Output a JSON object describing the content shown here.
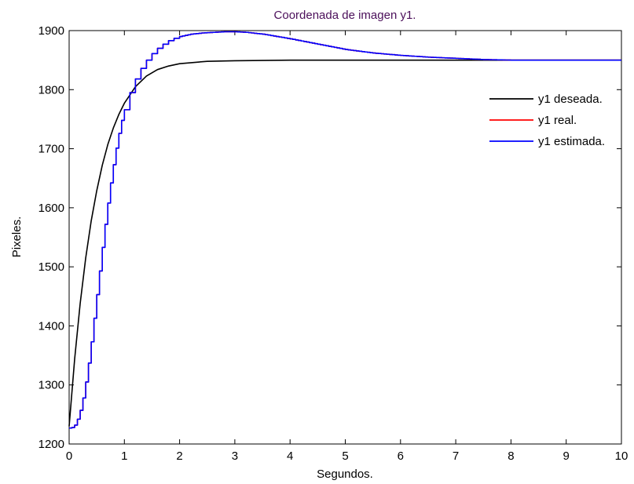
{
  "chart_data": {
    "type": "line",
    "title": "Coordenada de imagen y1.",
    "title_color": "#4b0f5a",
    "xlabel": "Segundos.",
    "ylabel": "Pixeles.",
    "xlim": [
      0,
      10
    ],
    "ylim": [
      1200,
      1900
    ],
    "x_ticks": [
      "0",
      "1",
      "2",
      "3",
      "4",
      "5",
      "6",
      "7",
      "8",
      "9",
      "10"
    ],
    "y_ticks": [
      "1200",
      "1300",
      "1400",
      "1500",
      "1600",
      "1700",
      "1800",
      "1900"
    ],
    "grid": false,
    "legend_position": "top-right",
    "series": [
      {
        "name": "y1 deseada.",
        "color": "#000000",
        "style": "smooth",
        "x": [
          0,
          0.1,
          0.2,
          0.3,
          0.4,
          0.5,
          0.6,
          0.7,
          0.8,
          0.9,
          1.0,
          1.2,
          1.4,
          1.6,
          1.8,
          2.0,
          2.5,
          3.0,
          4.0,
          5.0,
          6.0,
          7.0,
          8.0,
          9.0,
          10.0
        ],
        "y": [
          1230,
          1344,
          1438,
          1515,
          1578,
          1629,
          1672,
          1707,
          1735,
          1758,
          1777,
          1805,
          1823,
          1834,
          1840,
          1844,
          1848,
          1849,
          1850,
          1850,
          1850,
          1850,
          1850,
          1850,
          1850
        ]
      },
      {
        "name": "y1 real.",
        "color": "#ff0000",
        "style": "step",
        "x": [
          0,
          0.05,
          0.1,
          0.15,
          0.2,
          0.25,
          0.3,
          0.35,
          0.4,
          0.45,
          0.5,
          0.55,
          0.6,
          0.65,
          0.7,
          0.75,
          0.8,
          0.85,
          0.9,
          0.95,
          1.0,
          1.1,
          1.2,
          1.3,
          1.4,
          1.5,
          1.6,
          1.7,
          1.8,
          1.9,
          2.0,
          2.2,
          2.4,
          2.6,
          2.8,
          3.0,
          3.2,
          3.5,
          4.0,
          4.5,
          5.0,
          5.5,
          6.0,
          6.5,
          7.0,
          7.5,
          8.0,
          9.0,
          10.0
        ],
        "y": [
          1227,
          1228,
          1232,
          1242,
          1257,
          1278,
          1305,
          1337,
          1373,
          1413,
          1453,
          1493,
          1533,
          1572,
          1608,
          1642,
          1673,
          1701,
          1726,
          1748,
          1766,
          1795,
          1818,
          1836,
          1850,
          1861,
          1870,
          1877,
          1883,
          1887,
          1890,
          1894,
          1896,
          1897,
          1898,
          1898,
          1897,
          1894,
          1886,
          1877,
          1868,
          1862,
          1858,
          1855,
          1853,
          1851,
          1850,
          1850,
          1850
        ]
      },
      {
        "name": "y1 estimada.",
        "color": "#0000ff",
        "style": "step",
        "x": [
          0,
          0.05,
          0.1,
          0.15,
          0.2,
          0.25,
          0.3,
          0.35,
          0.4,
          0.45,
          0.5,
          0.55,
          0.6,
          0.65,
          0.7,
          0.75,
          0.8,
          0.85,
          0.9,
          0.95,
          1.0,
          1.1,
          1.2,
          1.3,
          1.4,
          1.5,
          1.6,
          1.7,
          1.8,
          1.9,
          2.0,
          2.2,
          2.4,
          2.6,
          2.8,
          3.0,
          3.2,
          3.5,
          4.0,
          4.5,
          5.0,
          5.5,
          6.0,
          6.5,
          7.0,
          7.5,
          8.0,
          9.0,
          10.0
        ],
        "y": [
          1227,
          1228,
          1232,
          1242,
          1257,
          1278,
          1305,
          1337,
          1373,
          1413,
          1453,
          1493,
          1533,
          1572,
          1608,
          1642,
          1673,
          1701,
          1726,
          1748,
          1766,
          1795,
          1818,
          1836,
          1850,
          1861,
          1870,
          1877,
          1883,
          1887,
          1890,
          1894,
          1896,
          1897,
          1898,
          1898,
          1897,
          1894,
          1886,
          1877,
          1868,
          1862,
          1858,
          1855,
          1853,
          1851,
          1850,
          1850,
          1850
        ]
      }
    ]
  }
}
